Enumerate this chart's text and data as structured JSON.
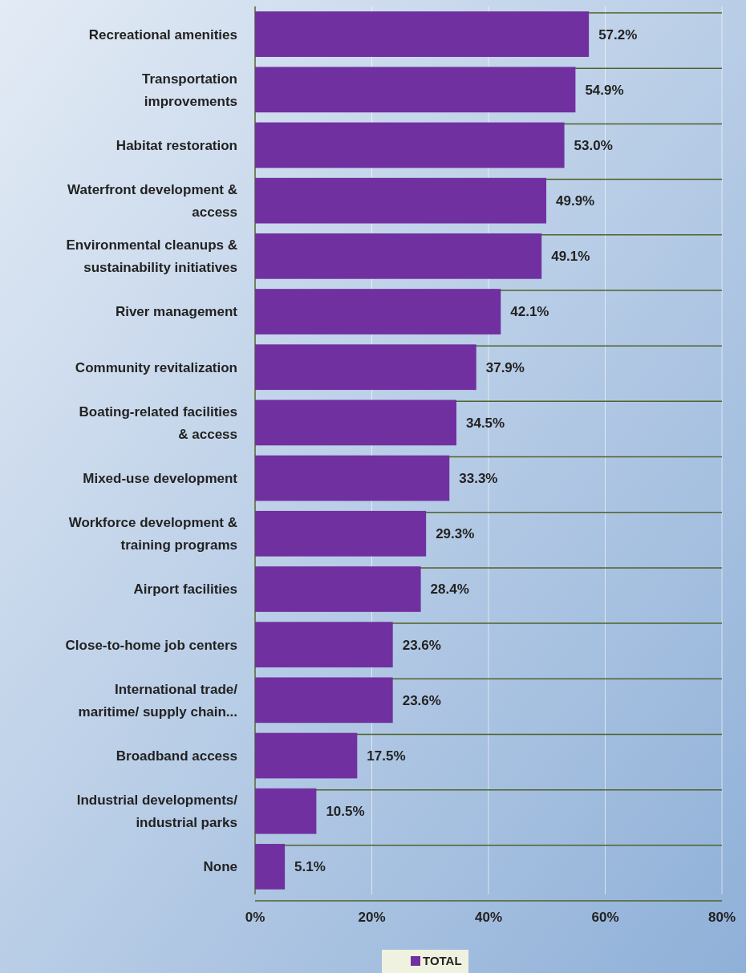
{
  "chart_data": {
    "type": "bar",
    "orientation": "horizontal",
    "categories": [
      "Recreational amenities",
      "Transportation improvements",
      "Habitat restoration",
      "Waterfront development & access",
      "Environmental cleanups & sustainability initiatives",
      "River management",
      "Community revitalization",
      "Boating-related facilities & access",
      "Mixed-use development",
      "Workforce development & training programs",
      "Airport facilities",
      "Close-to-home job centers",
      "International trade/ maritime/ supply chain...",
      "Broadband access",
      "Industrial developments/ industrial parks",
      "None"
    ],
    "series": [
      {
        "name": "TOTAL",
        "color": "#7030a0",
        "values": [
          57.2,
          54.9,
          53.0,
          49.9,
          49.1,
          42.1,
          37.9,
          34.5,
          33.3,
          29.3,
          28.4,
          23.6,
          23.6,
          17.5,
          10.5,
          5.1
        ],
        "value_labels": [
          "57.2%",
          "54.9%",
          "53.0%",
          "49.9%",
          "49.1%",
          "42.1%",
          "37.9%",
          "34.5%",
          "33.3%",
          "29.3%",
          "28.4%",
          "23.6%",
          "23.6%",
          "17.5%",
          "10.5%",
          "5.1%"
        ]
      }
    ],
    "xlim": [
      0,
      80
    ],
    "xticks": [
      {
        "value": 0,
        "label": "0%"
      },
      {
        "value": 20,
        "label": "20%"
      },
      {
        "value": 40,
        "label": "40%"
      },
      {
        "value": 60,
        "label": "60%"
      },
      {
        "value": 80,
        "label": "80%"
      }
    ],
    "grid": true,
    "legend": "bottom"
  }
}
